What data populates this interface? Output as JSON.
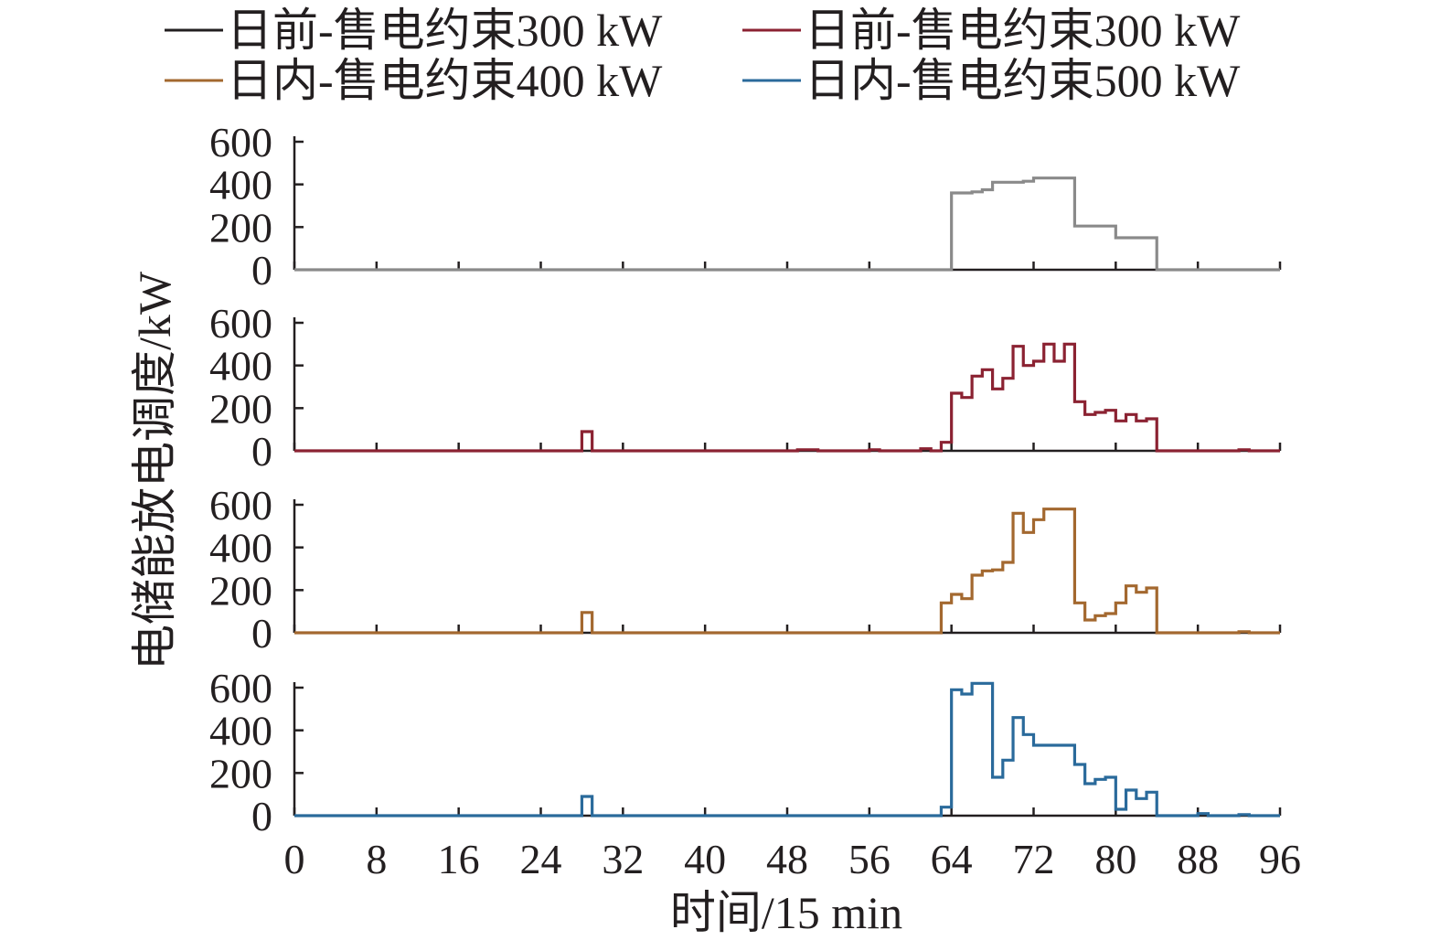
{
  "chart_data": {
    "type": "line",
    "step": true,
    "xlabel": "时间/15 min",
    "ylabel": "电储能放电调度/kW",
    "xlim": [
      0,
      96
    ],
    "ylim": [
      0,
      600
    ],
    "x_ticks": [
      "0",
      "8",
      "16",
      "24",
      "32",
      "40",
      "48",
      "56",
      "64",
      "72",
      "80",
      "88",
      "96"
    ],
    "y_ticks": [
      "0",
      "200",
      "400",
      "600"
    ],
    "legend_position": "top",
    "panels": [
      {
        "name": "日前-售电约束300 kW",
        "color": "#8a8a8a",
        "legend_color": "#231f20",
        "values": [
          0,
          0,
          0,
          0,
          0,
          0,
          0,
          0,
          0,
          0,
          0,
          0,
          0,
          0,
          0,
          0,
          0,
          0,
          0,
          0,
          0,
          0,
          0,
          0,
          0,
          0,
          0,
          0,
          0,
          0,
          0,
          0,
          0,
          0,
          0,
          0,
          0,
          0,
          0,
          0,
          0,
          0,
          0,
          0,
          0,
          0,
          0,
          0,
          0,
          0,
          0,
          0,
          0,
          0,
          0,
          0,
          0,
          0,
          0,
          0,
          0,
          0,
          0,
          0,
          360,
          360,
          365,
          375,
          410,
          410,
          410,
          415,
          430,
          430,
          430,
          430,
          205,
          205,
          205,
          205,
          150,
          150,
          150,
          150,
          0,
          0,
          0,
          0,
          0,
          0,
          0,
          0,
          0,
          0,
          0,
          0
        ]
      },
      {
        "name": "日前-售电约束300 kW",
        "color": "#8b2232",
        "legend_color": "#8b2232",
        "values": [
          0,
          0,
          0,
          0,
          0,
          0,
          0,
          0,
          0,
          0,
          0,
          0,
          0,
          0,
          0,
          0,
          0,
          0,
          0,
          0,
          0,
          0,
          0,
          0,
          0,
          0,
          0,
          0,
          90,
          0,
          0,
          0,
          0,
          0,
          0,
          0,
          0,
          0,
          0,
          0,
          0,
          0,
          0,
          0,
          0,
          0,
          0,
          0,
          0,
          5,
          5,
          0,
          0,
          0,
          0,
          0,
          5,
          0,
          0,
          0,
          0,
          10,
          0,
          40,
          270,
          250,
          350,
          380,
          290,
          340,
          490,
          400,
          420,
          500,
          420,
          500,
          230,
          170,
          180,
          190,
          140,
          170,
          140,
          150,
          0,
          0,
          0,
          0,
          0,
          0,
          0,
          0,
          5,
          0,
          0,
          0
        ]
      },
      {
        "name": "日内-售电约束400 kW",
        "color": "#a3682f",
        "legend_color": "#a3682f",
        "values": [
          0,
          0,
          0,
          0,
          0,
          0,
          0,
          0,
          0,
          0,
          0,
          0,
          0,
          0,
          0,
          0,
          0,
          0,
          0,
          0,
          0,
          0,
          0,
          0,
          0,
          0,
          0,
          0,
          95,
          0,
          0,
          0,
          0,
          0,
          0,
          0,
          0,
          0,
          0,
          0,
          0,
          0,
          0,
          0,
          0,
          0,
          0,
          0,
          0,
          0,
          0,
          0,
          0,
          0,
          0,
          0,
          0,
          0,
          0,
          0,
          0,
          0,
          0,
          140,
          180,
          160,
          270,
          290,
          295,
          330,
          560,
          470,
          530,
          580,
          580,
          580,
          140,
          60,
          80,
          90,
          140,
          220,
          190,
          210,
          0,
          0,
          0,
          0,
          0,
          0,
          0,
          0,
          5,
          0,
          0,
          0
        ]
      },
      {
        "name": "日内-售电约束500 kW",
        "color": "#2a6a9b",
        "legend_color": "#2a6a9b",
        "values": [
          0,
          0,
          0,
          0,
          0,
          0,
          0,
          0,
          0,
          0,
          0,
          0,
          0,
          0,
          0,
          0,
          0,
          0,
          0,
          0,
          0,
          0,
          0,
          0,
          0,
          0,
          0,
          0,
          90,
          0,
          0,
          0,
          0,
          0,
          0,
          0,
          0,
          0,
          0,
          0,
          0,
          0,
          0,
          0,
          0,
          0,
          0,
          0,
          0,
          0,
          0,
          0,
          0,
          0,
          0,
          0,
          0,
          0,
          0,
          0,
          0,
          0,
          0,
          40,
          590,
          570,
          620,
          620,
          180,
          260,
          460,
          380,
          330,
          330,
          330,
          330,
          240,
          150,
          170,
          180,
          30,
          120,
          80,
          110,
          0,
          0,
          0,
          0,
          10,
          0,
          0,
          0,
          5,
          0,
          0,
          0
        ]
      }
    ]
  }
}
